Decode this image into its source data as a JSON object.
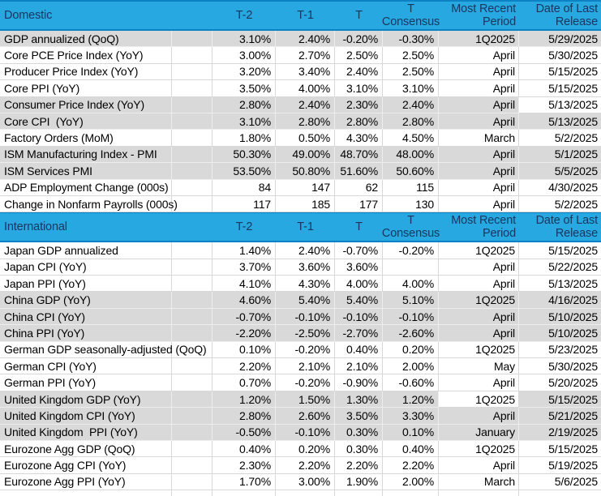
{
  "colors": {
    "header_bg": "#27A8E1",
    "header_border": "#0C81C4",
    "header_text": "#17375E",
    "row_gray": "#D9D9D9",
    "row_white": "#FFFFFF",
    "grid_on_white": "#D8D8D8",
    "grid_on_gray": "#EDEDED",
    "text": "#000000"
  },
  "columns": {
    "t2": "T-2",
    "t1": "T-1",
    "t": "T",
    "consensus_l1": "T",
    "consensus_l2": "Consensus",
    "period_l1": "Most Recent",
    "period_l2": "Period",
    "release_l1": "Date of Last",
    "release_l2": "Release"
  },
  "sections": [
    {
      "title": "Domestic",
      "rows": [
        {
          "label": "GDP annualized (QoQ)",
          "t2": "3.10%",
          "t1": "2.40%",
          "t": "-0.20%",
          "consensus": "-0.30%",
          "period": "1Q2025",
          "release": "5/29/2025",
          "shade": "gray",
          "white_cells": []
        },
        {
          "label": "Core PCE Price Index (YoY)",
          "t2": "3.00%",
          "t1": "2.70%",
          "t": "2.50%",
          "consensus": "2.50%",
          "period": "April",
          "release": "5/30/2025",
          "shade": "white",
          "white_cells": []
        },
        {
          "label": "Producer Price Index (YoY)",
          "t2": "3.20%",
          "t1": "3.40%",
          "t": "2.40%",
          "consensus": "2.50%",
          "period": "April",
          "release": "5/15/2025",
          "shade": "white",
          "white_cells": []
        },
        {
          "label": "Core PPI (YoY)",
          "t2": "3.50%",
          "t1": "4.00%",
          "t": "3.10%",
          "consensus": "3.10%",
          "period": "April",
          "release": "5/15/2025",
          "shade": "white",
          "white_cells": []
        },
        {
          "label": "Consumer Price Index (YoY)",
          "t2": "2.80%",
          "t1": "2.40%",
          "t": "2.30%",
          "consensus": "2.40%",
          "period": "April",
          "release": "5/13/2025",
          "shade": "gray",
          "white_cells": [
            "release"
          ]
        },
        {
          "label": "Core CPI  (YoY)",
          "t2": "3.10%",
          "t1": "2.80%",
          "t": "2.80%",
          "consensus": "2.80%",
          "period": "April",
          "release": "5/13/2025",
          "shade": "gray",
          "white_cells": []
        },
        {
          "label": "Factory Orders (MoM)",
          "t2": "1.80%",
          "t1": "0.50%",
          "t": "4.30%",
          "consensus": "4.50%",
          "period": "March",
          "release": "5/2/2025",
          "shade": "white",
          "white_cells": []
        },
        {
          "label": "ISM Manufacturing Index - PMI",
          "t2": "50.30%",
          "t1": "49.00%",
          "t": "48.70%",
          "consensus": "48.00%",
          "period": "April",
          "release": "5/1/2025",
          "shade": "gray",
          "white_cells": []
        },
        {
          "label": "ISM Services PMI",
          "t2": "53.50%",
          "t1": "50.80%",
          "t": "51.60%",
          "consensus": "50.60%",
          "period": "April",
          "release": "5/5/2025",
          "shade": "gray",
          "white_cells": []
        },
        {
          "label": "ADP Employment Change (000s)",
          "t2": "84",
          "t1": "147",
          "t": "62",
          "consensus": "115",
          "period": "April",
          "release": "4/30/2025",
          "shade": "white",
          "white_cells": []
        },
        {
          "label": "Change in Nonfarm Payrolls (000s)",
          "t2": "117",
          "t1": "185",
          "t": "177",
          "consensus": "130",
          "period": "April",
          "release": "5/2/2025",
          "shade": "white",
          "white_cells": []
        }
      ]
    },
    {
      "title": "International",
      "rows": [
        {
          "label": "Japan GDP annualized",
          "t2": "1.40%",
          "t1": "2.40%",
          "t": "-0.70%",
          "consensus": "-0.20%",
          "period": "1Q2025",
          "release": "5/15/2025",
          "shade": "white",
          "white_cells": []
        },
        {
          "label": "Japan CPI (YoY)",
          "t2": "3.70%",
          "t1": "3.60%",
          "t": "3.60%",
          "consensus": "",
          "period": "April",
          "release": "5/22/2025",
          "shade": "white",
          "white_cells": []
        },
        {
          "label": "Japan PPI (YoY)",
          "t2": "4.10%",
          "t1": "4.30%",
          "t": "4.00%",
          "consensus": "4.00%",
          "period": "April",
          "release": "5/13/2025",
          "shade": "white",
          "white_cells": []
        },
        {
          "label": "China GDP (YoY)",
          "t2": "4.60%",
          "t1": "5.40%",
          "t": "5.40%",
          "consensus": "5.10%",
          "period": "1Q2025",
          "release": "4/16/2025",
          "shade": "gray",
          "white_cells": []
        },
        {
          "label": "China CPI (YoY)",
          "t2": "-0.70%",
          "t1": "-0.10%",
          "t": "-0.10%",
          "consensus": "-0.10%",
          "period": "April",
          "release": "5/10/2025",
          "shade": "gray",
          "white_cells": []
        },
        {
          "label": "China PPI (YoY)",
          "t2": "-2.20%",
          "t1": "-2.50%",
          "t": "-2.70%",
          "consensus": "-2.60%",
          "period": "April",
          "release": "5/10/2025",
          "shade": "gray",
          "white_cells": []
        },
        {
          "label": "German GDP seasonally-adjusted (QoQ)",
          "t2": "0.10%",
          "t1": "-0.20%",
          "t": "0.40%",
          "consensus": "0.20%",
          "period": "1Q2025",
          "release": "5/23/2025",
          "shade": "white",
          "white_cells": []
        },
        {
          "label": "German CPI (YoY)",
          "t2": "2.20%",
          "t1": "2.10%",
          "t": "2.10%",
          "consensus": "2.00%",
          "period": "May",
          "release": "5/30/2025",
          "shade": "white",
          "white_cells": []
        },
        {
          "label": "German PPI (YoY)",
          "t2": "0.70%",
          "t1": "-0.20%",
          "t": "-0.90%",
          "consensus": "-0.60%",
          "period": "April",
          "release": "5/20/2025",
          "shade": "white",
          "white_cells": []
        },
        {
          "label": "United Kingdom GDP (YoY)",
          "t2": "1.20%",
          "t1": "1.50%",
          "t": "1.30%",
          "consensus": "1.20%",
          "period": "1Q2025",
          "release": "5/15/2025",
          "shade": "gray",
          "white_cells": [
            "period"
          ]
        },
        {
          "label": "United Kingdom CPI (YoY)",
          "t2": "2.80%",
          "t1": "2.60%",
          "t": "3.50%",
          "consensus": "3.30%",
          "period": "April",
          "release": "5/21/2025",
          "shade": "gray",
          "white_cells": []
        },
        {
          "label": "United Kingdom  PPI (YoY)",
          "t2": "-0.50%",
          "t1": "-0.10%",
          "t": "0.30%",
          "consensus": "0.10%",
          "period": "January",
          "release": "2/19/2025",
          "shade": "gray",
          "white_cells": []
        },
        {
          "label": "Eurozone Agg GDP (QoQ)",
          "t2": "0.40%",
          "t1": "0.20%",
          "t": "0.30%",
          "consensus": "0.40%",
          "period": "1Q2025",
          "release": "5/15/2025",
          "shade": "white",
          "white_cells": []
        },
        {
          "label": "Eurozone Agg CPI (YoY)",
          "t2": "2.30%",
          "t1": "2.20%",
          "t": "2.20%",
          "consensus": "2.20%",
          "period": "April",
          "release": "5/19/2025",
          "shade": "white",
          "white_cells": []
        },
        {
          "label": "Eurozone Agg PPI (YoY)",
          "t2": "1.70%",
          "t1": "3.00%",
          "t": "1.90%",
          "consensus": "2.00%",
          "period": "March",
          "release": "5/6/2025",
          "shade": "white",
          "white_cells": []
        }
      ]
    }
  ]
}
